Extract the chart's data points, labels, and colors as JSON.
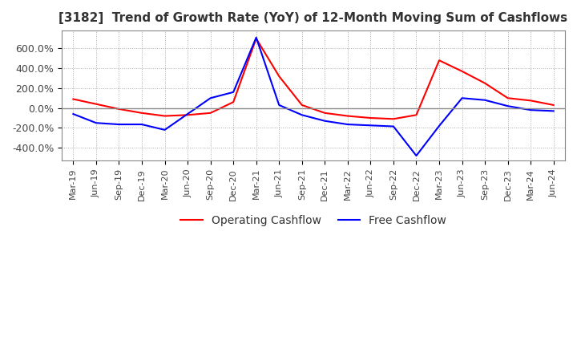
{
  "title": "[3182]  Trend of Growth Rate (YoY) of 12-Month Moving Sum of Cashflows",
  "title_fontsize": 11,
  "ylim": [
    -530,
    780
  ],
  "yticks": [
    -400,
    -200,
    0,
    200,
    400,
    600
  ],
  "ytick_labels": [
    "-400.0%",
    "-200.0%",
    "0.0%",
    "200.0%",
    "400.0%",
    "600.0%"
  ],
  "background_color": "#ffffff",
  "grid_color": "#aaaaaa",
  "legend_items": [
    "Operating Cashflow",
    "Free Cashflow"
  ],
  "legend_colors": [
    "#ff0000",
    "#0000ff"
  ],
  "x_labels": [
    "Mar-19",
    "Jun-19",
    "Sep-19",
    "Dec-19",
    "Mar-20",
    "Jun-20",
    "Sep-20",
    "Dec-20",
    "Mar-21",
    "Jun-21",
    "Sep-21",
    "Dec-21",
    "Mar-22",
    "Jun-22",
    "Sep-22",
    "Dec-22",
    "Mar-23",
    "Jun-23",
    "Sep-23",
    "Dec-23",
    "Mar-24",
    "Jun-24"
  ],
  "operating_cashflow": [
    90,
    40,
    -10,
    -50,
    -80,
    -70,
    -50,
    60,
    700,
    320,
    30,
    -50,
    -80,
    -100,
    -110,
    -70,
    480,
    370,
    250,
    100,
    75,
    30
  ],
  "free_cashflow": [
    -60,
    -150,
    -165,
    -165,
    -220,
    -60,
    100,
    160,
    710,
    30,
    -70,
    -130,
    -165,
    -175,
    -185,
    -480,
    -180,
    100,
    80,
    20,
    -20,
    -30
  ]
}
